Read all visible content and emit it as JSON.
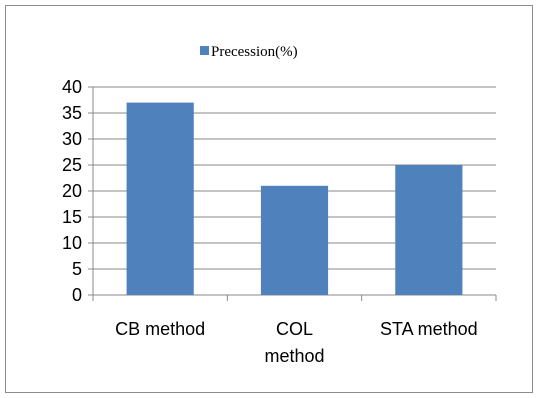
{
  "chart_data": {
    "type": "bar",
    "categories": [
      [
        "CB method"
      ],
      [
        "COL",
        "method"
      ],
      [
        "STA method"
      ]
    ],
    "series": [
      {
        "name": "Precession(%)",
        "values": [
          37,
          21,
          25
        ],
        "color": "#4f81bd"
      }
    ],
    "ylim": [
      0,
      40
    ],
    "yticks": [
      0,
      5,
      10,
      15,
      20,
      25,
      30,
      35,
      40
    ],
    "grid": true,
    "legend": "top"
  }
}
